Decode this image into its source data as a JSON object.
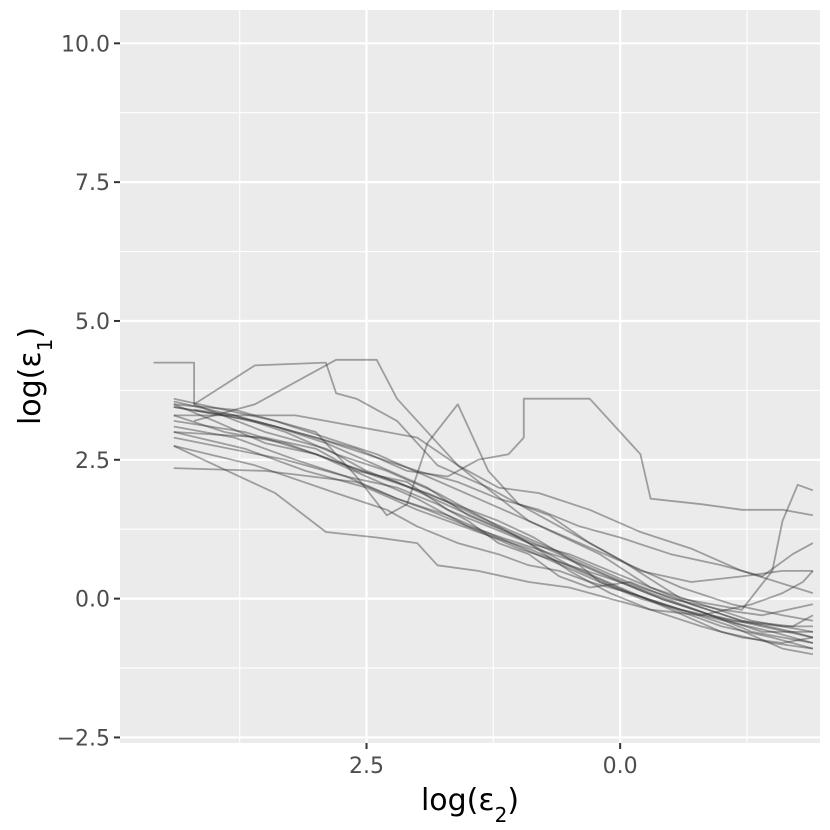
{
  "chart_data": {
    "type": "line",
    "title": "",
    "xlabel": "log(ε2)",
    "ylabel": "log(ε1)",
    "x_reversed": true,
    "xlim": [
      4.93,
      -1.97
    ],
    "ylim": [
      -2.6,
      10.6
    ],
    "x_ticks": [
      2.5,
      0.0
    ],
    "x_tick_labels": [
      "2.5",
      "0.0"
    ],
    "y_ticks": [
      10.0,
      7.5,
      5.0,
      2.5,
      0.0,
      -2.5
    ],
    "y_tick_labels": [
      "10.0",
      "7.5",
      "5.0",
      "2.5",
      "0.0",
      "−2.5"
    ],
    "grid": true,
    "background": "#ebebeb",
    "grid_color": "#ffffff",
    "line_color": "#333333",
    "line_opacity": 0.42,
    "series": [
      {
        "x": [
          4.6,
          4.2,
          4.2,
          3.5,
          2.9,
          2.5,
          1.2,
          0.85,
          0.4,
          0.2,
          -0.2,
          -0.8,
          -1.5,
          -1.9
        ],
        "y": [
          4.25,
          4.25,
          3.5,
          3.0,
          2.7,
          2.3,
          1.4,
          1.1,
          0.6,
          0.3,
          0.0,
          -0.3,
          -0.6,
          -0.8
        ]
      },
      {
        "x": [
          4.2,
          3.8,
          3.2,
          2.6,
          2.1,
          1.7,
          1.4,
          1.1,
          0.95,
          0.95,
          0.3,
          -0.2,
          -0.3,
          -0.8,
          -1.2,
          -1.6,
          -1.9
        ],
        "y": [
          3.4,
          3.3,
          3.0,
          2.7,
          2.3,
          2.2,
          2.5,
          2.6,
          2.9,
          3.6,
          3.6,
          2.6,
          1.8,
          1.7,
          1.6,
          1.6,
          1.5
        ]
      },
      {
        "x": [
          4.2,
          3.6,
          2.9,
          2.8,
          2.6,
          2.2,
          1.8,
          1.3,
          0.6,
          0.0,
          -0.6,
          -1.2,
          -1.5,
          -1.6,
          -1.75,
          -1.9
        ],
        "y": [
          3.5,
          4.2,
          4.25,
          3.7,
          3.6,
          3.2,
          2.4,
          2.0,
          1.3,
          0.7,
          0.0,
          -0.2,
          0.5,
          1.4,
          2.05,
          1.95
        ]
      },
      {
        "x": [
          4.2,
          3.6,
          2.8,
          2.4,
          2.2,
          1.6,
          0.9,
          0.2,
          -0.3,
          -0.8,
          -1.3,
          -1.9
        ],
        "y": [
          3.2,
          3.5,
          4.3,
          4.3,
          3.6,
          2.4,
          1.4,
          0.8,
          0.2,
          -0.1,
          -0.4,
          -0.6
        ]
      },
      {
        "x": [
          4.4,
          3.9,
          3.3,
          2.7,
          2.2,
          1.6,
          1.1,
          0.6,
          0.1,
          -0.3,
          -0.9,
          -1.4,
          -1.9
        ],
        "y": [
          3.3,
          3.0,
          2.8,
          2.4,
          2.1,
          1.6,
          1.2,
          0.8,
          0.4,
          0.1,
          -0.3,
          -0.5,
          -0.7
        ]
      },
      {
        "x": [
          4.4,
          3.8,
          3.2,
          2.7,
          2.2,
          1.7,
          1.2,
          0.7,
          0.2,
          -0.4,
          -1.0,
          -1.5,
          -1.9
        ],
        "y": [
          3.1,
          2.9,
          2.5,
          2.2,
          1.8,
          1.5,
          1.1,
          0.7,
          0.3,
          -0.1,
          -0.5,
          -0.7,
          -0.9
        ]
      },
      {
        "x": [
          4.4,
          3.6,
          2.8,
          2.3,
          2.0,
          1.6,
          1.2,
          0.9,
          0.6,
          0.3,
          -0.1,
          -0.6,
          -1.1,
          -1.6,
          -1.9
        ],
        "y": [
          2.75,
          2.4,
          1.9,
          1.6,
          1.3,
          1.0,
          0.8,
          0.6,
          0.5,
          0.3,
          0.1,
          -0.2,
          -0.5,
          -0.9,
          -1.0
        ]
      },
      {
        "x": [
          4.4,
          3.9,
          3.4,
          2.9,
          2.4,
          1.9,
          1.5,
          1.0,
          0.5,
          0.0,
          -0.5,
          -1.0,
          -1.5,
          -1.9
        ],
        "y": [
          3.45,
          3.3,
          3.1,
          2.8,
          2.4,
          2.0,
          1.5,
          1.1,
          0.6,
          0.2,
          -0.2,
          -0.6,
          -0.8,
          -0.9
        ]
      },
      {
        "x": [
          4.4,
          3.7,
          3.1,
          2.5,
          2.0,
          1.4,
          0.9,
          0.4,
          -0.1,
          -0.6,
          -1.1,
          -1.6,
          -1.9
        ],
        "y": [
          3.0,
          2.7,
          2.3,
          2.0,
          1.6,
          1.2,
          0.9,
          0.5,
          0.1,
          -0.2,
          -0.4,
          -0.5,
          -0.5
        ]
      },
      {
        "x": [
          4.4,
          3.5,
          2.6,
          2.2,
          1.9,
          1.5,
          1.0,
          0.5,
          0.0,
          -0.4,
          -0.9,
          -1.3,
          -1.9
        ],
        "y": [
          2.35,
          2.3,
          2.1,
          1.8,
          1.6,
          1.3,
          1.0,
          0.7,
          0.3,
          0.0,
          -0.3,
          -0.6,
          -0.8
        ]
      },
      {
        "x": [
          4.4,
          3.4,
          2.9,
          2.4,
          2.0,
          1.8,
          1.4,
          0.9,
          0.5,
          0.1,
          -0.3,
          -0.8,
          -1.3,
          -1.6,
          -1.8,
          -1.9
        ],
        "y": [
          2.75,
          1.9,
          1.2,
          1.1,
          1.0,
          0.6,
          0.5,
          0.3,
          0.2,
          0.0,
          -0.2,
          -0.3,
          -0.1,
          0.1,
          0.3,
          0.5
        ]
      },
      {
        "x": [
          4.4,
          3.8,
          3.0,
          2.6,
          2.3,
          2.1,
          1.9,
          1.6,
          1.3,
          1.0,
          0.7,
          0.3,
          -0.2,
          -0.7,
          -1.2,
          -1.6,
          -1.9
        ],
        "y": [
          3.5,
          3.4,
          3.0,
          2.2,
          1.5,
          1.7,
          2.8,
          3.5,
          2.3,
          1.7,
          1.5,
          1.0,
          0.5,
          0.3,
          0.4,
          0.5,
          0.5
        ]
      },
      {
        "x": [
          4.4,
          3.6,
          3.0,
          2.5,
          2.0,
          1.6,
          1.2,
          0.8,
          0.4,
          0.0,
          -0.5,
          -1.0,
          -1.4,
          -1.7,
          -1.9
        ],
        "y": [
          3.45,
          3.2,
          2.9,
          2.6,
          2.3,
          2.1,
          1.8,
          1.6,
          1.3,
          1.1,
          0.8,
          0.6,
          0.4,
          0.8,
          1.0
        ]
      },
      {
        "x": [
          4.4,
          3.9,
          3.4,
          2.9,
          2.4,
          1.9,
          1.4,
          0.9,
          0.4,
          -0.1,
          -0.6,
          -1.1,
          -1.6,
          -1.9
        ],
        "y": [
          3.6,
          3.4,
          3.2,
          2.9,
          2.6,
          2.2,
          1.8,
          1.4,
          1.0,
          0.6,
          0.2,
          -0.1,
          -0.3,
          -0.4
        ]
      },
      {
        "x": [
          4.4,
          3.7,
          3.0,
          2.4,
          1.9,
          1.3,
          0.9,
          0.5,
          0.1,
          -0.3,
          -0.8,
          -1.2,
          -1.6,
          -1.9
        ],
        "y": [
          3.2,
          3.0,
          2.6,
          2.2,
          1.9,
          1.4,
          1.0,
          0.5,
          0.1,
          -0.2,
          -0.5,
          -0.7,
          -0.8,
          -0.7
        ]
      },
      {
        "x": [
          4.4,
          4.0,
          3.5,
          3.0,
          2.5,
          2.0,
          1.5,
          1.0,
          0.5,
          0.0,
          -0.4,
          -0.9,
          -1.4,
          -1.9
        ],
        "y": [
          3.5,
          3.2,
          2.8,
          2.6,
          2.2,
          1.8,
          1.3,
          0.9,
          0.6,
          0.3,
          0.0,
          -0.3,
          -0.6,
          -0.6
        ]
      },
      {
        "x": [
          4.4,
          3.3,
          2.7,
          2.2,
          1.8,
          1.5,
          1.2,
          0.9,
          0.6,
          0.3,
          -0.1,
          -0.5,
          -1.0,
          -1.4,
          -1.9
        ],
        "y": [
          2.9,
          2.5,
          2.2,
          2.0,
          1.7,
          1.4,
          1.0,
          0.8,
          0.4,
          0.2,
          0.3,
          0.0,
          -0.2,
          -0.3,
          -0.1
        ]
      },
      {
        "x": [
          4.4,
          3.2,
          2.6,
          2.0,
          1.6,
          1.2,
          0.8,
          0.3,
          -0.2,
          -0.7,
          -1.2,
          -1.9
        ],
        "y": [
          3.3,
          3.3,
          3.1,
          2.9,
          2.4,
          2.0,
          1.9,
          1.6,
          1.2,
          0.9,
          0.5,
          0.1
        ]
      },
      {
        "x": [
          4.4,
          3.5,
          3.0,
          2.6,
          2.1,
          1.7,
          1.3,
          0.9,
          0.5,
          0.1,
          -0.3,
          -0.7,
          -1.2,
          -1.7,
          -1.9
        ],
        "y": [
          3.0,
          2.9,
          2.7,
          2.3,
          2.1,
          1.6,
          1.3,
          1.0,
          0.8,
          0.5,
          0.2,
          -0.1,
          -0.4,
          -0.5,
          -0.3
        ]
      },
      {
        "x": [
          4.4,
          3.8,
          3.3,
          2.8,
          2.3,
          1.8,
          1.3,
          0.8,
          0.3,
          -0.2,
          -0.7,
          -1.2,
          -1.7,
          -1.9
        ],
        "y": [
          3.55,
          3.3,
          3.0,
          2.6,
          2.3,
          1.9,
          1.4,
          1.0,
          0.6,
          0.2,
          -0.1,
          -0.4,
          -0.6,
          -0.7
        ]
      }
    ]
  }
}
